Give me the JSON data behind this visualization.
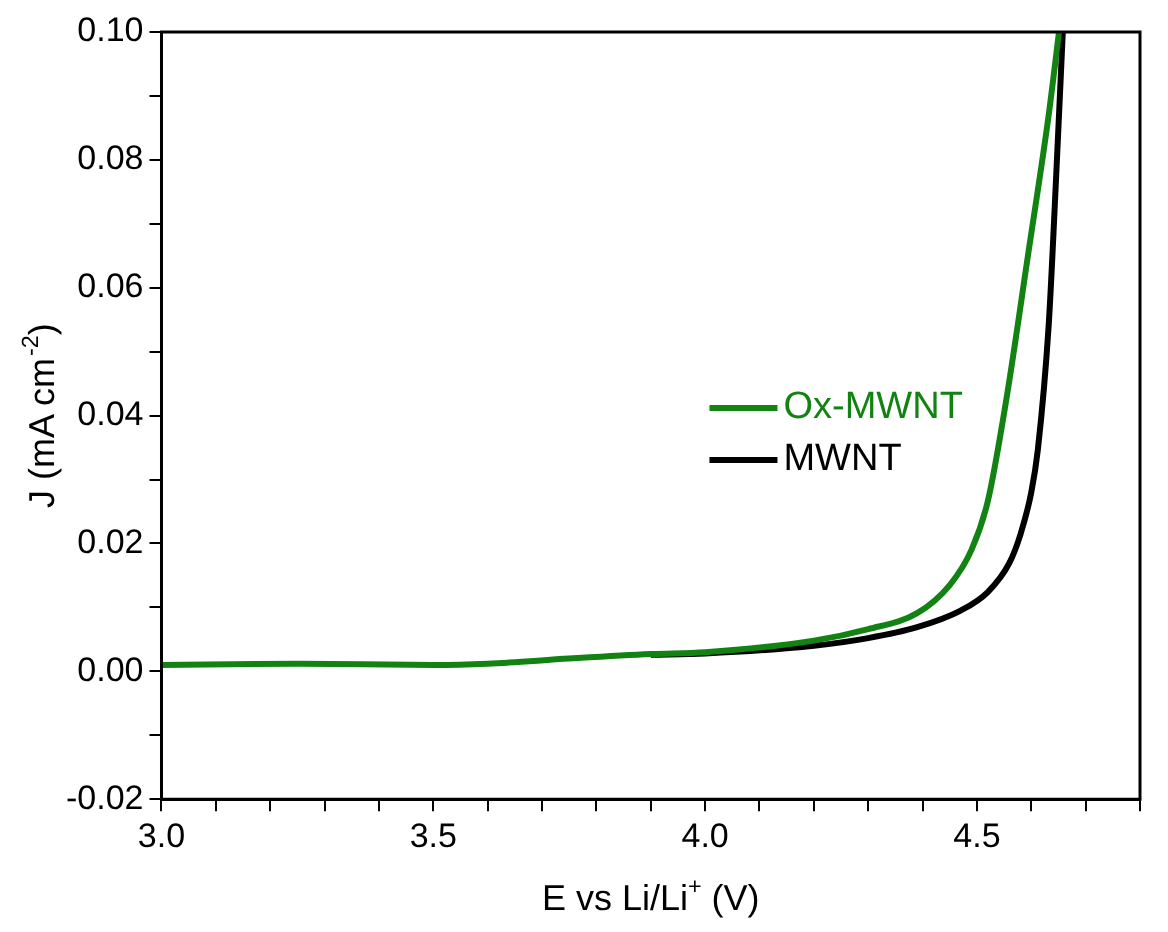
{
  "chart_data": {
    "type": "line",
    "xlabel": "E vs Li/Li$^{+}$ (V)",
    "ylabel": "J (mA cm$^{-2}$)",
    "xlim": [
      3.0,
      4.8
    ],
    "ylim": [
      -0.02,
      0.1
    ],
    "xticks": [
      {
        "value": 3.0,
        "label": "3.0"
      },
      {
        "value": 3.1,
        "label": null
      },
      {
        "value": 3.2,
        "label": null
      },
      {
        "value": 3.3,
        "label": null
      },
      {
        "value": 3.4,
        "label": null
      },
      {
        "value": 3.5,
        "label": "3.5"
      },
      {
        "value": 3.6,
        "label": null
      },
      {
        "value": 3.7,
        "label": null
      },
      {
        "value": 3.8,
        "label": null
      },
      {
        "value": 3.9,
        "label": null
      },
      {
        "value": 4.0,
        "label": "4.0"
      },
      {
        "value": 4.1,
        "label": null
      },
      {
        "value": 4.2,
        "label": null
      },
      {
        "value": 4.3,
        "label": null
      },
      {
        "value": 4.4,
        "label": null
      },
      {
        "value": 4.5,
        "label": "4.5"
      },
      {
        "value": 4.6,
        "label": null
      },
      {
        "value": 4.7,
        "label": null
      },
      {
        "value": 4.8,
        "label": null
      }
    ],
    "yticks": [
      {
        "value": -0.02,
        "label": "-0.02"
      },
      {
        "value": -0.01,
        "label": null
      },
      {
        "value": 0,
        "label": "0.00"
      },
      {
        "value": 0.01,
        "label": null
      },
      {
        "value": 0.02,
        "label": "0.02"
      },
      {
        "value": 0.03,
        "label": null
      },
      {
        "value": 0.04,
        "label": "0.04"
      },
      {
        "value": 0.05,
        "label": null
      },
      {
        "value": 0.06,
        "label": "0.06"
      },
      {
        "value": 0.07,
        "label": null
      },
      {
        "value": 0.08,
        "label": "0.08"
      },
      {
        "value": 0.09,
        "label": null
      },
      {
        "value": 0.1,
        "label": "0.10"
      }
    ],
    "grid": false,
    "legend": "right",
    "marker": "none",
    "line_style": "solid",
    "series": [
      {
        "name": "Ox-MWNT",
        "color": "#128312",
        "x": [
          3.0,
          3.25,
          3.5,
          3.6,
          3.75,
          3.9,
          4.0,
          4.2,
          4.3,
          4.39,
          4.45,
          4.49,
          4.52,
          4.555,
          4.594,
          4.632,
          4.651
        ],
        "values": [
          0.001,
          0.0012,
          0.001,
          0.0012,
          0.002,
          0.0027,
          0.003,
          0.0048,
          0.0066,
          0.0091,
          0.0135,
          0.019,
          0.0266,
          0.043,
          0.0651,
          0.087,
          0.1
        ]
      },
      {
        "name": "MWNT",
        "color": "#000000",
        "x": [
          3.9,
          4.0,
          4.2,
          4.3,
          4.39,
          4.47,
          4.52,
          4.56,
          4.58,
          4.6,
          4.612,
          4.632,
          4.645,
          4.658
        ],
        "values": [
          0.0026,
          0.0028,
          0.004,
          0.0052,
          0.0069,
          0.0095,
          0.0124,
          0.017,
          0.0214,
          0.028,
          0.0346,
          0.0541,
          0.076,
          0.1
        ]
      }
    ]
  }
}
